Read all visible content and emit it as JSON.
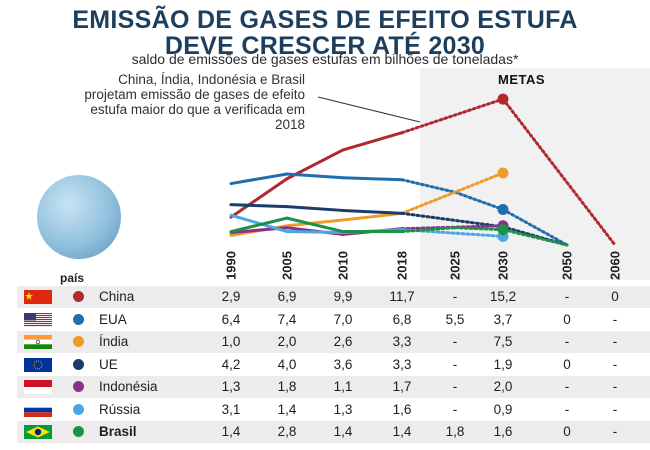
{
  "header": {
    "title_line1": "EMISSÃO DE GASES DE EFEITO ESTUFA",
    "title_line2": "DEVE CRESCER ATÉ 2030",
    "subtitle": "saldo de emissões de gases estufas em bilhões de toneladas*"
  },
  "annotation": "China, Índia, Indonésia e Brasil projetam emissão de gases de efeito estufa maior do que a verificada em 2018",
  "metas_label": "METAS",
  "table_header": "país",
  "colors": {
    "title": "#1d3e5c",
    "metas_background": "#f1f1f1",
    "row_alt": "#ececec"
  },
  "chart_data": {
    "type": "line",
    "x": [
      "1990",
      "2005",
      "2010",
      "2018",
      "2025",
      "2030",
      "2050",
      "2060"
    ],
    "projection_from": "2018",
    "series": [
      {
        "name": "China",
        "color": "#b0292e",
        "flag": "china",
        "bold": false,
        "values": [
          2.9,
          6.9,
          9.9,
          11.7,
          null,
          15.2,
          null,
          0
        ],
        "labels": [
          "2,9",
          "6,9",
          "9,9",
          "11,7",
          "-",
          "15,2",
          "-",
          "0"
        ]
      },
      {
        "name": "EUA",
        "color": "#1f6fae",
        "flag": "usa",
        "bold": false,
        "values": [
          6.4,
          7.4,
          7.0,
          6.8,
          5.5,
          3.7,
          0,
          null
        ],
        "labels": [
          "6,4",
          "7,4",
          "7,0",
          "6,8",
          "5,5",
          "3,7",
          "0",
          "-"
        ]
      },
      {
        "name": "Índia",
        "color": "#ee9b2b",
        "flag": "india",
        "bold": false,
        "values": [
          1.0,
          2.0,
          2.6,
          3.3,
          null,
          7.5,
          null,
          null
        ],
        "labels": [
          "1,0",
          "2,0",
          "2,6",
          "3,3",
          "-",
          "7,5",
          "-",
          "-"
        ]
      },
      {
        "name": "UE",
        "color": "#1a3c66",
        "flag": "eu",
        "bold": false,
        "values": [
          4.2,
          4.0,
          3.6,
          3.3,
          null,
          1.9,
          0,
          null
        ],
        "labels": [
          "4,2",
          "4,0",
          "3,6",
          "3,3",
          "-",
          "1,9",
          "0",
          "-"
        ]
      },
      {
        "name": "Indonésia",
        "color": "#8b2f8e",
        "flag": "indonesia",
        "bold": false,
        "values": [
          1.3,
          1.8,
          1.1,
          1.7,
          null,
          2.0,
          null,
          null
        ],
        "labels": [
          "1,3",
          "1,8",
          "1,1",
          "1,7",
          "-",
          "2,0",
          "-",
          "-"
        ]
      },
      {
        "name": "Rússia",
        "color": "#4aa7e0",
        "flag": "russia",
        "bold": false,
        "values": [
          3.1,
          1.4,
          1.3,
          1.6,
          null,
          0.9,
          null,
          null
        ],
        "labels": [
          "3,1",
          "1,4",
          "1,3",
          "1,6",
          "-",
          "0,9",
          "-",
          "-"
        ]
      },
      {
        "name": "Brasil",
        "color": "#1e9148",
        "flag": "brazil",
        "bold": true,
        "values": [
          1.4,
          2.8,
          1.4,
          1.4,
          1.8,
          1.6,
          0,
          null
        ],
        "labels": [
          "1,4",
          "2,8",
          "1,4",
          "1,4",
          "1,8",
          "1,6",
          "0",
          "-"
        ]
      }
    ]
  }
}
